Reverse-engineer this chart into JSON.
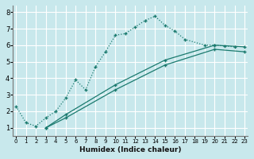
{
  "xlabel": "Humidex (Indice chaleur)",
  "bg_color": "#c8e8ec",
  "grid_color": "#ffffff",
  "line_color": "#1a7a6e",
  "xticks": [
    0,
    1,
    2,
    3,
    4,
    5,
    6,
    7,
    8,
    9,
    10,
    11,
    12,
    13,
    14,
    15,
    16,
    17,
    18,
    19,
    20,
    21,
    22,
    23
  ],
  "yticks": [
    1,
    2,
    3,
    4,
    5,
    6,
    7,
    8
  ],
  "xlim": [
    -0.3,
    23.3
  ],
  "ylim": [
    0.5,
    8.4
  ],
  "line1_x": [
    0,
    1,
    2,
    3,
    4,
    5,
    6,
    7,
    8,
    9,
    10,
    11,
    12,
    13,
    14,
    15,
    16,
    17,
    19,
    20,
    21,
    22
  ],
  "line1_y": [
    2.3,
    1.3,
    1.1,
    1.6,
    2.0,
    2.8,
    3.9,
    3.3,
    4.7,
    5.6,
    6.6,
    6.7,
    7.1,
    7.5,
    7.75,
    7.2,
    6.85,
    6.35,
    6.0,
    6.0,
    5.95,
    5.9
  ],
  "line2_x": [
    3,
    5,
    10,
    15,
    20,
    23
  ],
  "line2_y": [
    1.0,
    1.6,
    3.3,
    4.8,
    5.75,
    5.6
  ],
  "line3_x": [
    3,
    5,
    10,
    15,
    20,
    23
  ],
  "line3_y": [
    1.0,
    1.8,
    3.6,
    5.1,
    6.0,
    5.9
  ]
}
